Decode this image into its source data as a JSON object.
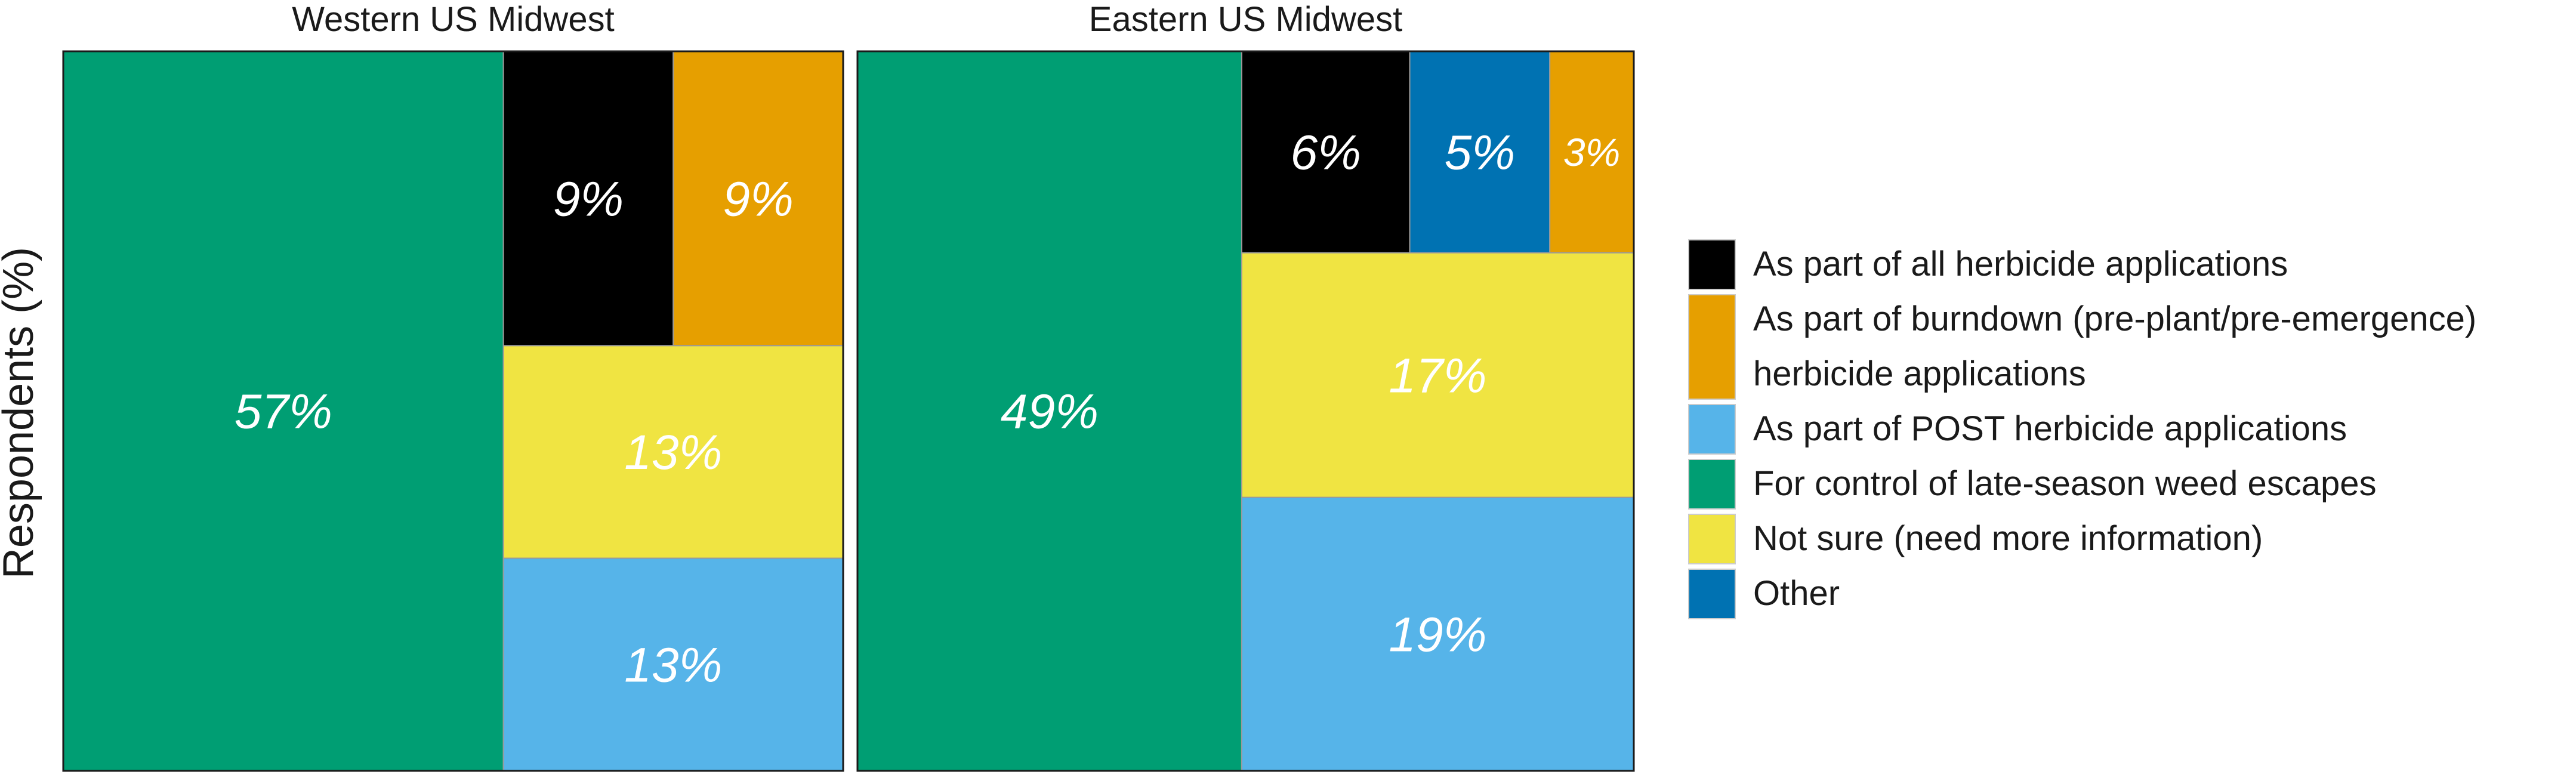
{
  "chart_data": {
    "type": "treemap",
    "ylabel": "Respondents (%)",
    "legend_position": "right",
    "categories": [
      {
        "key": "all",
        "label_lines": [
          "As part of all herbicide applications"
        ],
        "color": "#000000"
      },
      {
        "key": "burndown",
        "label_lines": [
          "As part of burndown (pre-plant/pre-emergence)",
          "herbicide applications"
        ],
        "color": "#E69F00"
      },
      {
        "key": "post",
        "label_lines": [
          "As part of POST herbicide applications"
        ],
        "color": "#56B4E9"
      },
      {
        "key": "late",
        "label_lines": [
          "For control of late-season weed escapes"
        ],
        "color": "#009E73"
      },
      {
        "key": "notsure",
        "label_lines": [
          "Not sure (need more information)"
        ],
        "color": "#F0E442"
      },
      {
        "key": "other",
        "label_lines": [
          "Other"
        ],
        "color": "#0072B2"
      }
    ],
    "panels": [
      {
        "title": "Western US Midwest",
        "values": [
          {
            "key": "late",
            "value": 57,
            "label": "57%"
          },
          {
            "key": "all",
            "value": 9,
            "label": "9%"
          },
          {
            "key": "burndown",
            "value": 9,
            "label": "9%"
          },
          {
            "key": "notsure",
            "value": 13,
            "label": "13%"
          },
          {
            "key": "post",
            "value": 13,
            "label": "13%"
          }
        ]
      },
      {
        "title": "Eastern US Midwest",
        "values": [
          {
            "key": "late",
            "value": 49,
            "label": "49%"
          },
          {
            "key": "all",
            "value": 6,
            "label": "6%"
          },
          {
            "key": "other",
            "value": 5,
            "label": "5%"
          },
          {
            "key": "burndown",
            "value": 3,
            "label": "3%"
          },
          {
            "key": "notsure",
            "value": 17,
            "label": "17%"
          },
          {
            "key": "post",
            "value": 19,
            "label": "19%"
          }
        ]
      }
    ]
  }
}
